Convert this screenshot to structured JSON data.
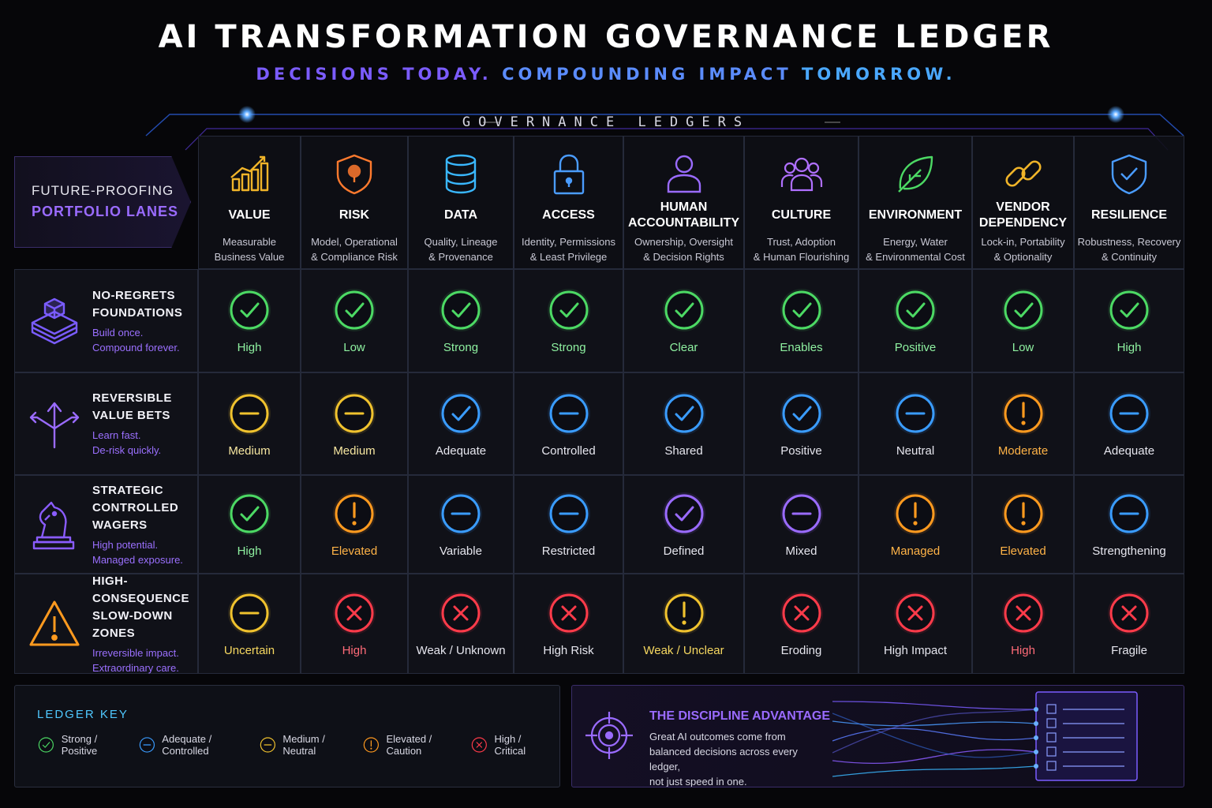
{
  "header": {
    "title": "AI TRANSFORMATION GOVERNANCE LEDGER",
    "subtitle_part1": "DECISIONS TODAY.",
    "subtitle_part2": "COMPOUNDING IMPACT",
    "subtitle_part3": "TOMORROW.",
    "section_label": "GOVERNANCE LEDGERS"
  },
  "corner": {
    "line1": "FUTURE-PROOFING",
    "line2": "PORTFOLIO LANES"
  },
  "ledgers": [
    {
      "icon": "bar-chart-icon",
      "name": "VALUE",
      "desc1": "Measurable",
      "desc2": "Business Value",
      "color": "#f0b429"
    },
    {
      "icon": "shield-alert-icon",
      "name": "RISK",
      "desc1": "Model, Operational",
      "desc2": "& Compliance Risk",
      "color": "#ff7a2e"
    },
    {
      "icon": "database-icon",
      "name": "DATA",
      "desc1": "Quality, Lineage",
      "desc2": "& Provenance",
      "color": "#3ab8ff"
    },
    {
      "icon": "lock-icon",
      "name": "ACCESS",
      "desc1": "Identity, Permissions",
      "desc2": "& Least Privilege",
      "color": "#4a9cff"
    },
    {
      "icon": "person-icon",
      "name": "HUMAN ACCOUNTABILITY",
      "desc1": "Ownership, Oversight",
      "desc2": "& Decision Rights",
      "color": "#9a6bff"
    },
    {
      "icon": "group-icon",
      "name": "CULTURE",
      "desc1": "Trust, Adoption",
      "desc2": "& Human Flourishing",
      "color": "#b070ff"
    },
    {
      "icon": "leaf-icon",
      "name": "ENVIRONMENT",
      "desc1": "Energy, Water",
      "desc2": "& Environmental Cost",
      "color": "#4cd964"
    },
    {
      "icon": "chain-link-icon",
      "name": "VENDOR DEPENDENCY",
      "desc1": "Lock-in, Portability",
      "desc2": "& Optionality",
      "color": "#f0b429"
    },
    {
      "icon": "shield-check-icon",
      "name": "RESILIENCE",
      "desc1": "Robustness, Recovery",
      "desc2": "& Continuity",
      "color": "#4a9cff"
    }
  ],
  "lanes": [
    {
      "icon": "stacked-layers-icon",
      "name1": "NO-REGRETS",
      "name2": "FOUNDATIONS",
      "desc1": "Build once.",
      "desc2": "Compound forever.",
      "cells": [
        {
          "status": "check",
          "color": "#4cd964",
          "label": "High",
          "label_color": "#8ef0a0"
        },
        {
          "status": "check",
          "color": "#4cd964",
          "label": "Low",
          "label_color": "#8ef0a0"
        },
        {
          "status": "check",
          "color": "#4cd964",
          "label": "Strong",
          "label_color": "#8ef0a0"
        },
        {
          "status": "check",
          "color": "#4cd964",
          "label": "Strong",
          "label_color": "#8ef0a0"
        },
        {
          "status": "check",
          "color": "#4cd964",
          "label": "Clear",
          "label_color": "#8ef0a0"
        },
        {
          "status": "check",
          "color": "#4cd964",
          "label": "Enables",
          "label_color": "#8ef0a0"
        },
        {
          "status": "check",
          "color": "#4cd964",
          "label": "Positive",
          "label_color": "#8ef0a0"
        },
        {
          "status": "check",
          "color": "#4cd964",
          "label": "Low",
          "label_color": "#8ef0a0"
        },
        {
          "status": "check",
          "color": "#4cd964",
          "label": "High",
          "label_color": "#8ef0a0"
        }
      ]
    },
    {
      "icon": "branching-arrows-icon",
      "name1": "REVERSIBLE",
      "name2": "VALUE BETS",
      "desc1": "Learn fast.",
      "desc2": "De-risk quickly.",
      "cells": [
        {
          "status": "minus",
          "color": "#f0c22e",
          "label": "Medium",
          "label_color": "#f6e6a0"
        },
        {
          "status": "minus",
          "color": "#f0c22e",
          "label": "Medium",
          "label_color": "#f6e6a0"
        },
        {
          "status": "check",
          "color": "#3a9cff",
          "label": "Adequate",
          "label_color": "#e6e6ee"
        },
        {
          "status": "minus",
          "color": "#3a9cff",
          "label": "Controlled",
          "label_color": "#e6e6ee"
        },
        {
          "status": "check",
          "color": "#3a9cff",
          "label": "Shared",
          "label_color": "#e6e6ee"
        },
        {
          "status": "check",
          "color": "#3a9cff",
          "label": "Positive",
          "label_color": "#e6e6ee"
        },
        {
          "status": "minus",
          "color": "#3a9cff",
          "label": "Neutral",
          "label_color": "#e6e6ee"
        },
        {
          "status": "exclaim",
          "color": "#ff9a1f",
          "label": "Moderate",
          "label_color": "#ffb347"
        },
        {
          "status": "minus",
          "color": "#3a9cff",
          "label": "Adequate",
          "label_color": "#e6e6ee"
        }
      ]
    },
    {
      "icon": "knight-icon",
      "name1": "STRATEGIC",
      "name2": "CONTROLLED WAGERS",
      "desc1": "High potential.",
      "desc2": "Managed exposure.",
      "cells": [
        {
          "status": "check",
          "color": "#4cd964",
          "label": "High",
          "label_color": "#8ef0a0"
        },
        {
          "status": "exclaim",
          "color": "#ff9a1f",
          "label": "Elevated",
          "label_color": "#ffb347"
        },
        {
          "status": "minus",
          "color": "#3a9cff",
          "label": "Variable",
          "label_color": "#e6e6ee"
        },
        {
          "status": "minus",
          "color": "#3a9cff",
          "label": "Restricted",
          "label_color": "#e6e6ee"
        },
        {
          "status": "check",
          "color": "#9a6bff",
          "label": "Defined",
          "label_color": "#e6e6ee"
        },
        {
          "status": "minus",
          "color": "#9a6bff",
          "label": "Mixed",
          "label_color": "#e6e6ee"
        },
        {
          "status": "exclaim",
          "color": "#ff9a1f",
          "label": "Managed",
          "label_color": "#ffb347"
        },
        {
          "status": "exclaim",
          "color": "#ff9a1f",
          "label": "Elevated",
          "label_color": "#ffb347"
        },
        {
          "status": "minus",
          "color": "#3a9cff",
          "label": "Strengthening",
          "label_color": "#e6e6ee"
        }
      ]
    },
    {
      "icon": "warning-triangle-icon",
      "name1": "HIGH-CONSEQUENCE",
      "name2": "SLOW-DOWN ZONES",
      "desc1": "Irreversible impact.",
      "desc2": "Extraordinary care.",
      "cells": [
        {
          "status": "minus",
          "color": "#f0c22e",
          "label": "Uncertain",
          "label_color": "#f6d860"
        },
        {
          "status": "cross",
          "color": "#ff3b4a",
          "label": "High",
          "label_color": "#ff6b78"
        },
        {
          "status": "cross",
          "color": "#ff3b4a",
          "label": "Weak / Unknown",
          "label_color": "#e6e6ee"
        },
        {
          "status": "cross",
          "color": "#ff3b4a",
          "label": "High Risk",
          "label_color": "#e6e6ee"
        },
        {
          "status": "exclaim",
          "color": "#f0c22e",
          "label": "Weak / Unclear",
          "label_color": "#f6d860"
        },
        {
          "status": "cross",
          "color": "#ff3b4a",
          "label": "Eroding",
          "label_color": "#e6e6ee"
        },
        {
          "status": "cross",
          "color": "#ff3b4a",
          "label": "High Impact",
          "label_color": "#e6e6ee"
        },
        {
          "status": "cross",
          "color": "#ff3b4a",
          "label": "High",
          "label_color": "#ff6b78"
        },
        {
          "status": "cross",
          "color": "#ff3b4a",
          "label": "Fragile",
          "label_color": "#e6e6ee"
        }
      ]
    }
  ],
  "legend": {
    "title": "LEDGER KEY",
    "items": [
      {
        "status": "check",
        "color": "#4cd964",
        "label": "Strong / Positive"
      },
      {
        "status": "minus",
        "color": "#3a9cff",
        "label": "Adequate / Controlled"
      },
      {
        "status": "minus",
        "color": "#f0c22e",
        "label": "Medium / Neutral"
      },
      {
        "status": "exclaim",
        "color": "#ff9a1f",
        "label": "Elevated / Caution"
      },
      {
        "status": "cross",
        "color": "#ff3b4a",
        "label": "High / Critical"
      }
    ]
  },
  "advantage": {
    "title": "THE DISCIPLINE ADVANTAGE",
    "line1": "Great AI outcomes come from",
    "line2": "balanced decisions across every ledger,",
    "line3": "not just speed in one."
  }
}
